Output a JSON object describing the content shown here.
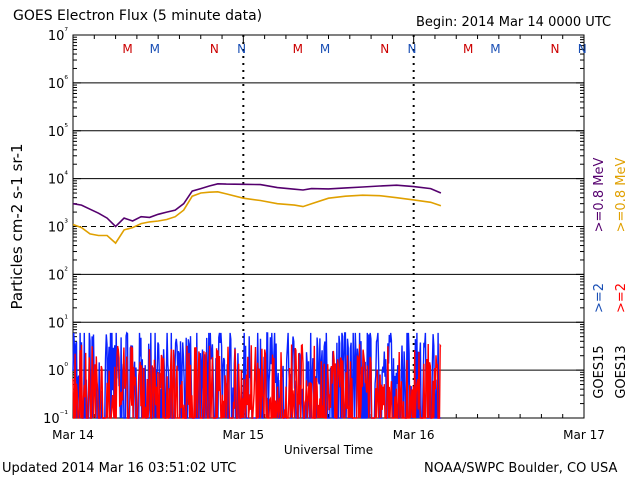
{
  "header": {
    "title": "GOES Electron Flux (5 minute data)",
    "begin": "Begin: 2014 Mar 14 0000 UTC"
  },
  "footer": {
    "updated": "Updated 2014 Mar 16 03:51:02 UTC",
    "credit": "NOAA/SWPC Boulder, CO USA"
  },
  "chart_data": {
    "type": "line",
    "title": "GOES Electron Flux (5 minute data)",
    "xlabel": "Universal Time",
    "ylabel": "Particles cm-2 s-1 sr-1",
    "yscale": "log",
    "ylim_exp": [
      -1,
      7
    ],
    "y_tick_labels": [
      "10⁻¹",
      "10⁰",
      "10¹",
      "10²",
      "10³",
      "10⁴",
      "10⁵",
      "10⁶",
      "10⁷"
    ],
    "x_tick_labels": [
      "Mar 14",
      "Mar 15",
      "Mar 16",
      "Mar 17"
    ],
    "xlim_days": [
      0,
      3
    ],
    "threshold": 1000,
    "day_boundaries": [
      1,
      2
    ],
    "markers": [
      {
        "label": "M",
        "day": 0.32,
        "color": "#cc0000"
      },
      {
        "label": "M",
        "day": 0.48,
        "color": "#1a4fb5"
      },
      {
        "label": "N",
        "day": 0.83,
        "color": "#cc0000"
      },
      {
        "label": "N",
        "day": 0.99,
        "color": "#1a4fb5"
      },
      {
        "label": "M",
        "day": 1.32,
        "color": "#cc0000"
      },
      {
        "label": "M",
        "day": 1.48,
        "color": "#1a4fb5"
      },
      {
        "label": "N",
        "day": 1.83,
        "color": "#cc0000"
      },
      {
        "label": "N",
        "day": 1.99,
        "color": "#1a4fb5"
      },
      {
        "label": "M",
        "day": 2.32,
        "color": "#cc0000"
      },
      {
        "label": "M",
        "day": 2.48,
        "color": "#1a4fb5"
      },
      {
        "label": "N",
        "day": 2.83,
        "color": "#cc0000"
      },
      {
        "label": "N",
        "day": 2.99,
        "color": "#1a4fb5"
      }
    ],
    "series": [
      {
        "name": ">=0.8 MeV (GOES15)",
        "color": "#55006e",
        "x": [
          0,
          0.05,
          0.1,
          0.15,
          0.2,
          0.25,
          0.3,
          0.35,
          0.4,
          0.45,
          0.5,
          0.55,
          0.6,
          0.65,
          0.7,
          0.75,
          0.8,
          0.85,
          0.9,
          1.0,
          1.1,
          1.2,
          1.3,
          1.35,
          1.4,
          1.5,
          1.6,
          1.7,
          1.8,
          1.9,
          2.0,
          2.1,
          2.16
        ],
        "y": [
          3000,
          2800,
          2300,
          1900,
          1500,
          1000,
          1500,
          1300,
          1600,
          1550,
          1800,
          2000,
          2200,
          3000,
          5500,
          6200,
          7000,
          7800,
          7700,
          7600,
          7500,
          6500,
          6000,
          5800,
          6200,
          6100,
          6400,
          6700,
          7000,
          7300,
          6800,
          6200,
          5000
        ]
      },
      {
        "name": ">=0.8 MeV (GOES13)",
        "color": "#e0a000",
        "x": [
          0,
          0.05,
          0.1,
          0.15,
          0.2,
          0.25,
          0.3,
          0.35,
          0.4,
          0.45,
          0.5,
          0.55,
          0.6,
          0.65,
          0.7,
          0.75,
          0.8,
          0.85,
          0.9,
          1.0,
          1.1,
          1.2,
          1.3,
          1.35,
          1.4,
          1.5,
          1.6,
          1.7,
          1.8,
          1.9,
          2.0,
          2.1,
          2.16
        ],
        "y": [
          1100,
          950,
          700,
          650,
          650,
          450,
          850,
          950,
          1150,
          1250,
          1300,
          1400,
          1600,
          2200,
          4300,
          5000,
          5200,
          5300,
          4800,
          3900,
          3500,
          3000,
          2800,
          2600,
          3000,
          3900,
          4300,
          4500,
          4400,
          4000,
          3600,
          3200,
          2700
        ]
      }
    ],
    "noise_series": [
      {
        "name": ">=2 MeV (GOES15)",
        "color": "#0a22ff",
        "x_range": [
          0,
          2.16
        ],
        "y_base": 2.5,
        "y_min": 0.1,
        "y_max": 6
      },
      {
        "name": ">=2 MeV (GOES13)",
        "color": "#ff0000",
        "x_range": [
          0,
          2.16
        ],
        "y_base": 1.0,
        "y_min": 0.1,
        "y_max": 4
      }
    ],
    "legend": {
      "right": [
        {
          "text": ">=0.8 MeV",
          "color": "#55006e"
        },
        {
          "text": ">=0.8 MeV",
          "color": "#e0a000"
        }
      ],
      "lower": [
        {
          "text": ">=2",
          "color": "#1a4fb5"
        },
        {
          "text": ">=2",
          "color": "#ff0000"
        }
      ],
      "satellites": [
        "GOES15",
        "GOES13"
      ]
    }
  }
}
